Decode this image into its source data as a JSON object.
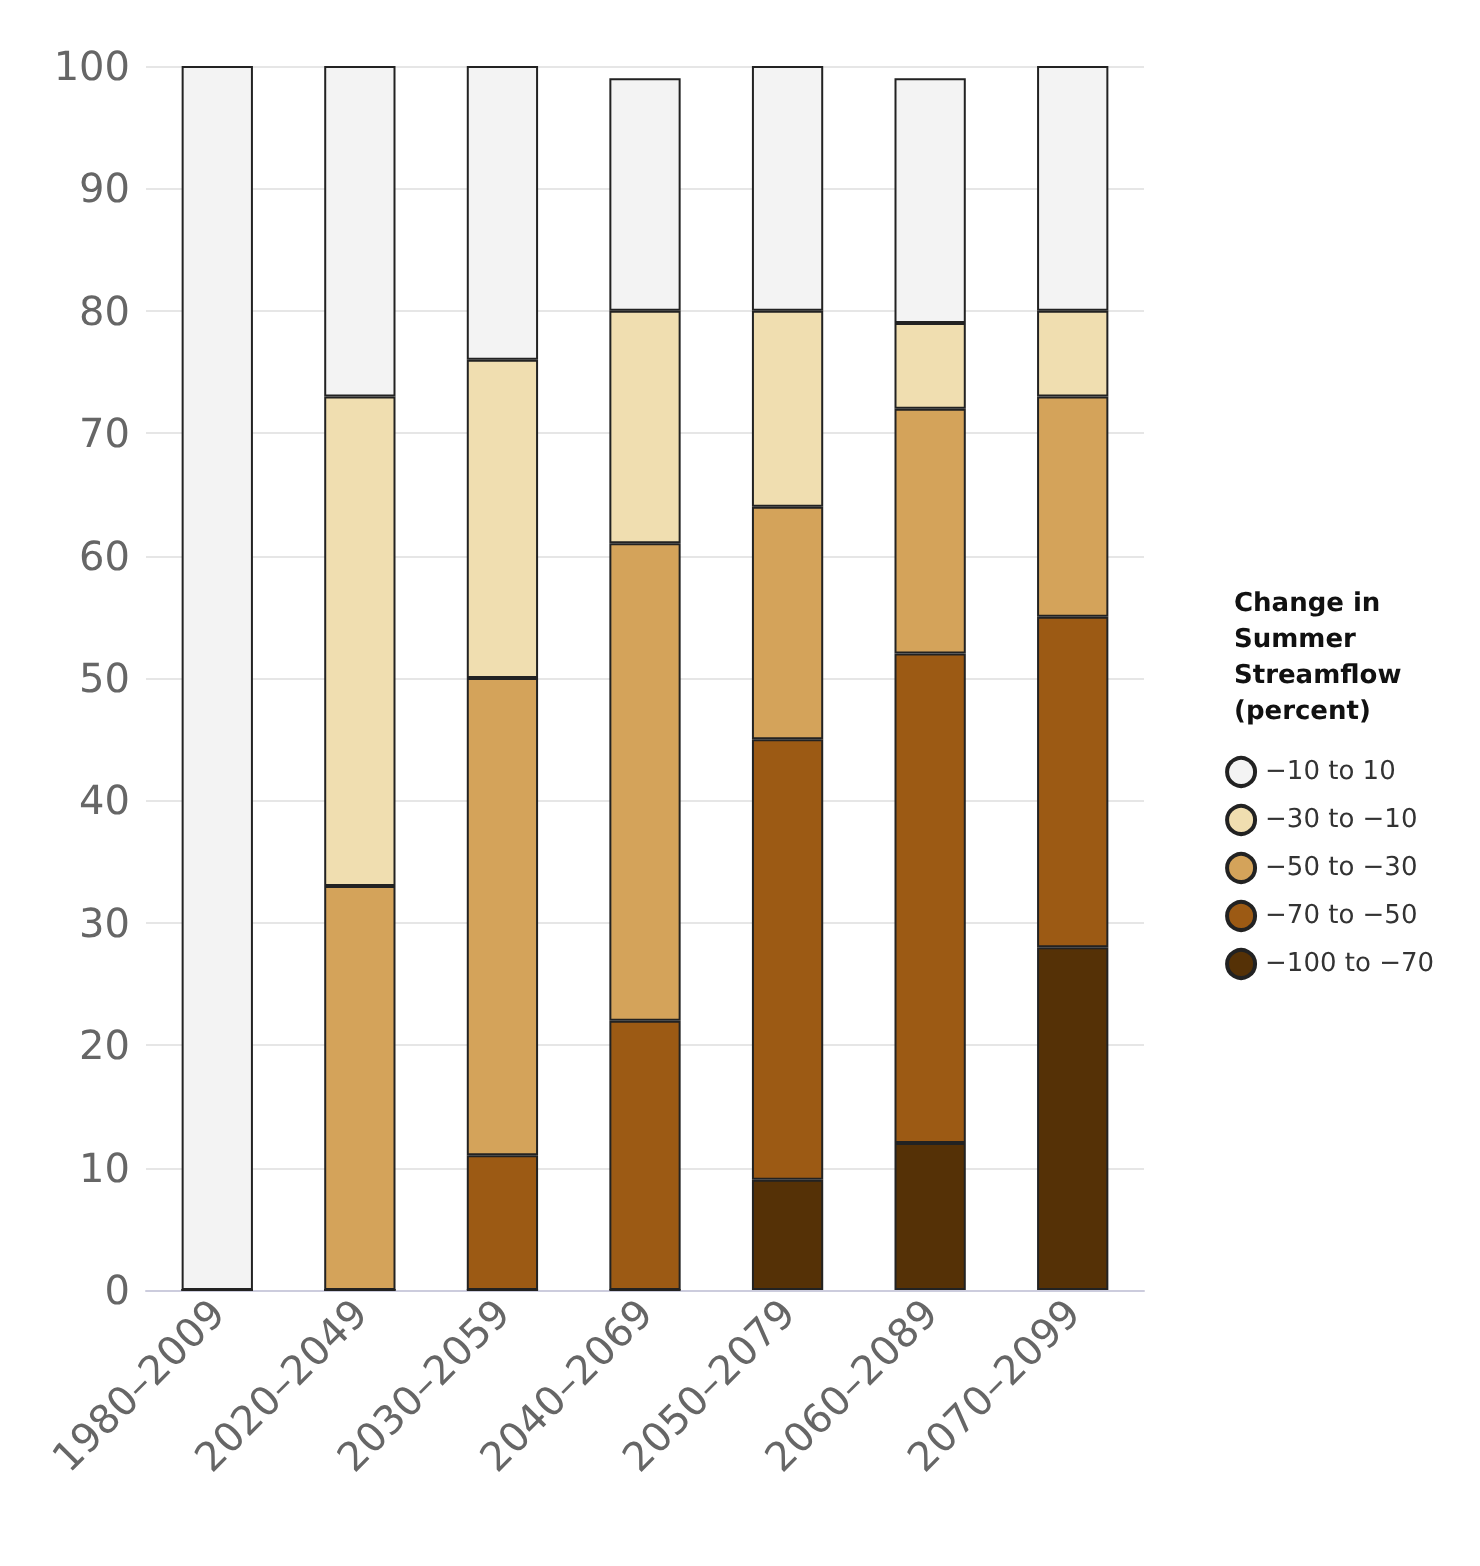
{
  "chart_data": {
    "type": "bar",
    "stacked": true,
    "legend_title": "Change in Summer Streamflow (percent)",
    "categories": [
      "1980–2009",
      "2020–2049",
      "2030–2059",
      "2040–2069",
      "2050–2079",
      "2060–2089",
      "2070–2099"
    ],
    "series": [
      {
        "name": "−100 to −70",
        "color": "#553106",
        "values": [
          0,
          0,
          0,
          0,
          9,
          12,
          28
        ]
      },
      {
        "name": "−70 to −50",
        "color": "#9c5a14",
        "values": [
          0,
          0,
          11,
          22,
          36,
          40,
          27
        ]
      },
      {
        "name": "−50 to −30",
        "color": "#d4a35a",
        "values": [
          0,
          33,
          39,
          39,
          19,
          20,
          18
        ]
      },
      {
        "name": "−30 to −10",
        "color": "#f0deb0",
        "values": [
          0,
          40,
          26,
          19,
          16,
          7,
          7
        ]
      },
      {
        "name": "−10 to 10",
        "color": "#f3f3f3",
        "values": [
          100,
          27,
          24,
          19,
          20,
          20,
          20
        ]
      }
    ],
    "ylim": [
      0,
      100
    ],
    "yticks": [
      0,
      10,
      20,
      30,
      40,
      50,
      60,
      70,
      80,
      90,
      100
    ],
    "grid": "y",
    "legend": "right"
  }
}
